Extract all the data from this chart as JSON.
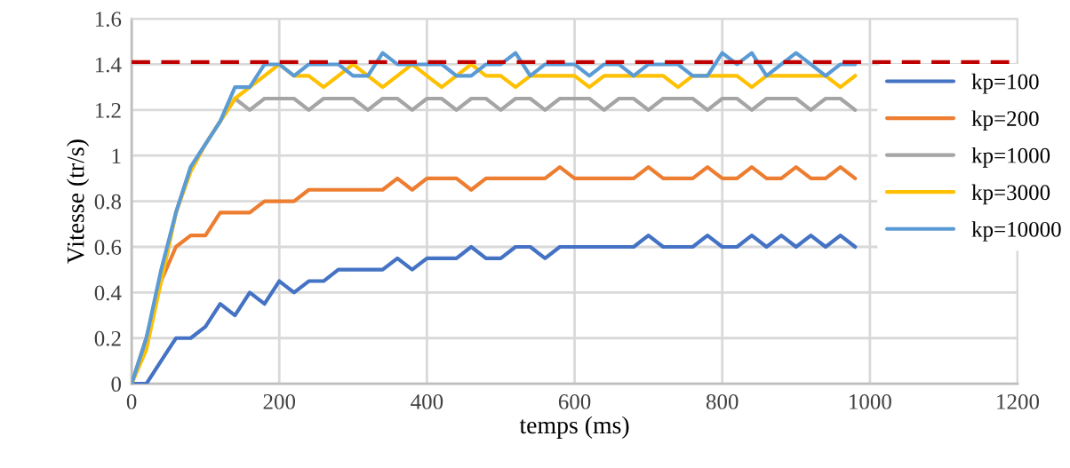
{
  "chart_data": {
    "type": "line",
    "xlabel": "temps (ms)",
    "ylabel": "Vitesse (tr/s)",
    "x": [
      0,
      20,
      40,
      60,
      80,
      100,
      120,
      140,
      160,
      180,
      200,
      220,
      240,
      260,
      280,
      300,
      320,
      340,
      360,
      380,
      400,
      420,
      440,
      460,
      480,
      500,
      520,
      540,
      560,
      580,
      600,
      620,
      640,
      660,
      680,
      700,
      720,
      740,
      760,
      780,
      800,
      820,
      840,
      860,
      880,
      900,
      920,
      940,
      960,
      980
    ],
    "series": [
      {
        "name": "kp=100",
        "color": "#4472c4",
        "values": [
          0,
          0,
          0.1,
          0.2,
          0.2,
          0.25,
          0.35,
          0.3,
          0.4,
          0.35,
          0.45,
          0.4,
          0.45,
          0.45,
          0.5,
          0.5,
          0.5,
          0.5,
          0.55,
          0.5,
          0.55,
          0.55,
          0.55,
          0.6,
          0.55,
          0.55,
          0.6,
          0.6,
          0.55,
          0.6,
          0.6,
          0.6,
          0.6,
          0.6,
          0.6,
          0.65,
          0.6,
          0.6,
          0.6,
          0.65,
          0.6,
          0.6,
          0.65,
          0.6,
          0.65,
          0.6,
          0.65,
          0.6,
          0.65,
          0.6
        ]
      },
      {
        "name": "kp=200",
        "color": "#ed7d31",
        "values": [
          0,
          0.2,
          0.45,
          0.6,
          0.65,
          0.65,
          0.75,
          0.75,
          0.75,
          0.8,
          0.8,
          0.8,
          0.85,
          0.85,
          0.85,
          0.85,
          0.85,
          0.85,
          0.9,
          0.85,
          0.9,
          0.9,
          0.9,
          0.85,
          0.9,
          0.9,
          0.9,
          0.9,
          0.9,
          0.95,
          0.9,
          0.9,
          0.9,
          0.9,
          0.9,
          0.95,
          0.9,
          0.9,
          0.9,
          0.95,
          0.9,
          0.9,
          0.95,
          0.9,
          0.9,
          0.95,
          0.9,
          0.9,
          0.95,
          0.9
        ]
      },
      {
        "name": "kp=1000",
        "color": "#a5a5a5",
        "values": [
          0,
          0.2,
          0.45,
          0.75,
          0.95,
          1.05,
          1.15,
          1.25,
          1.2,
          1.25,
          1.25,
          1.25,
          1.2,
          1.25,
          1.25,
          1.25,
          1.2,
          1.25,
          1.25,
          1.2,
          1.25,
          1.25,
          1.2,
          1.25,
          1.25,
          1.2,
          1.25,
          1.25,
          1.2,
          1.25,
          1.25,
          1.25,
          1.2,
          1.25,
          1.25,
          1.2,
          1.25,
          1.25,
          1.25,
          1.2,
          1.25,
          1.25,
          1.2,
          1.25,
          1.25,
          1.25,
          1.2,
          1.25,
          1.25,
          1.2
        ]
      },
      {
        "name": "kp=3000",
        "color": "#ffc000",
        "values": [
          0,
          0.15,
          0.45,
          0.75,
          0.93,
          1.05,
          1.15,
          1.25,
          1.3,
          1.35,
          1.4,
          1.35,
          1.35,
          1.3,
          1.35,
          1.4,
          1.35,
          1.3,
          1.35,
          1.4,
          1.35,
          1.3,
          1.35,
          1.4,
          1.35,
          1.35,
          1.3,
          1.35,
          1.35,
          1.35,
          1.35,
          1.3,
          1.35,
          1.35,
          1.35,
          1.35,
          1.35,
          1.3,
          1.35,
          1.35,
          1.35,
          1.35,
          1.3,
          1.35,
          1.35,
          1.35,
          1.35,
          1.35,
          1.3,
          1.35
        ]
      },
      {
        "name": "kp=10000",
        "color": "#5b9bd5",
        "values": [
          0,
          0.2,
          0.5,
          0.75,
          0.95,
          1.05,
          1.15,
          1.3,
          1.3,
          1.4,
          1.4,
          1.35,
          1.4,
          1.4,
          1.4,
          1.35,
          1.35,
          1.45,
          1.4,
          1.4,
          1.4,
          1.4,
          1.35,
          1.35,
          1.4,
          1.4,
          1.45,
          1.35,
          1.4,
          1.4,
          1.4,
          1.35,
          1.4,
          1.4,
          1.35,
          1.4,
          1.4,
          1.4,
          1.35,
          1.35,
          1.45,
          1.4,
          1.45,
          1.35,
          1.4,
          1.45,
          1.4,
          1.35,
          1.4,
          1.4
        ]
      }
    ],
    "ref_lines": [
      {
        "axis": "y",
        "value": 1.41,
        "color": "#c00000",
        "line_style": "dashed"
      }
    ],
    "xlim": [
      0,
      1200
    ],
    "xticks": [
      0,
      200,
      400,
      600,
      800,
      1000,
      1200
    ],
    "ylim": [
      0,
      1.6
    ],
    "yticks": [
      {
        "value": 0,
        "label": "0"
      },
      {
        "value": 0.2,
        "label": "0.2"
      },
      {
        "value": 0.4,
        "label": "0.4"
      },
      {
        "value": 0.6,
        "label": "0.6"
      },
      {
        "value": 0.8,
        "label": "0.8"
      },
      {
        "value": 1,
        "label": "1"
      },
      {
        "value": 1.2,
        "label": "1.2"
      },
      {
        "value": 1.4,
        "label": "1.4"
      },
      {
        "value": 1.6,
        "label": "1.6"
      }
    ],
    "grid": true,
    "legend": "right",
    "marker": "none",
    "line_style": "solid"
  }
}
